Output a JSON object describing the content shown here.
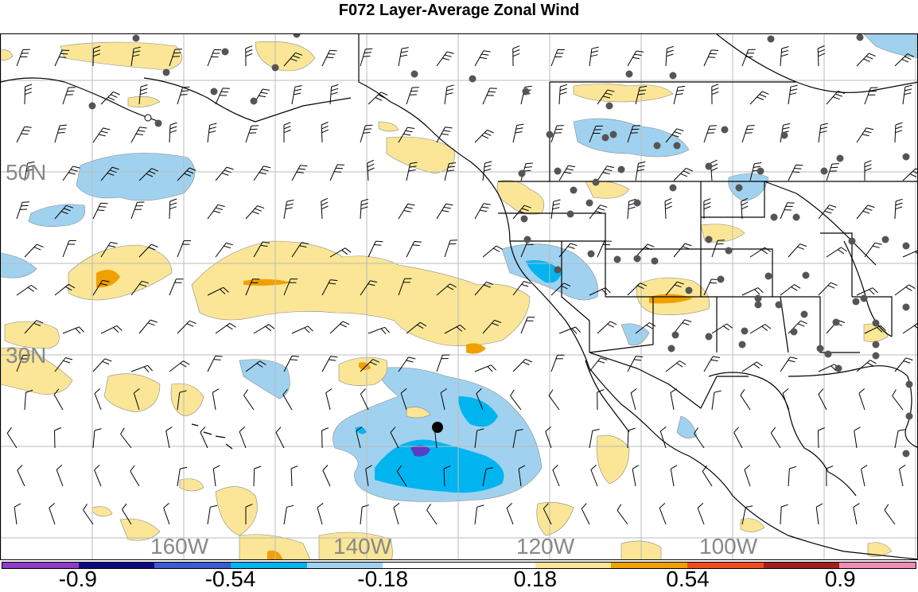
{
  "title": "F072 Layer-Average Zonal Wind",
  "lat_labels": [
    {
      "text": "50N",
      "lat": 50
    },
    {
      "text": "30N",
      "lat": 30
    }
  ],
  "lon_labels": [
    {
      "text": "160W",
      "lon": -160
    },
    {
      "text": "140W",
      "lon": -140
    },
    {
      "text": "120W",
      "lon": -120
    },
    {
      "text": "100W",
      "lon": -100
    }
  ],
  "colorbar": {
    "colors": [
      "#8c3cc8",
      "#0a0a80",
      "#3c5ad2",
      "#00b4f0",
      "#a0d2f0",
      "#ffffff",
      "#ffffff",
      "#fae696",
      "#f0a000",
      "#f04b1e",
      "#a01e1e",
      "#f08cb4"
    ],
    "labels": [
      "-0.9",
      "-0.54",
      "-0.18",
      "0.18",
      "0.54",
      "0.9"
    ]
  },
  "colors": {
    "neg_light": "#a0d2f0",
    "neg_mid": "#00b4f0",
    "neg_dark": "#5a3cc8",
    "pos_light": "#fae696",
    "pos_mid": "#f0a000",
    "grid": "#bbbbbb",
    "station": "#555555"
  }
}
